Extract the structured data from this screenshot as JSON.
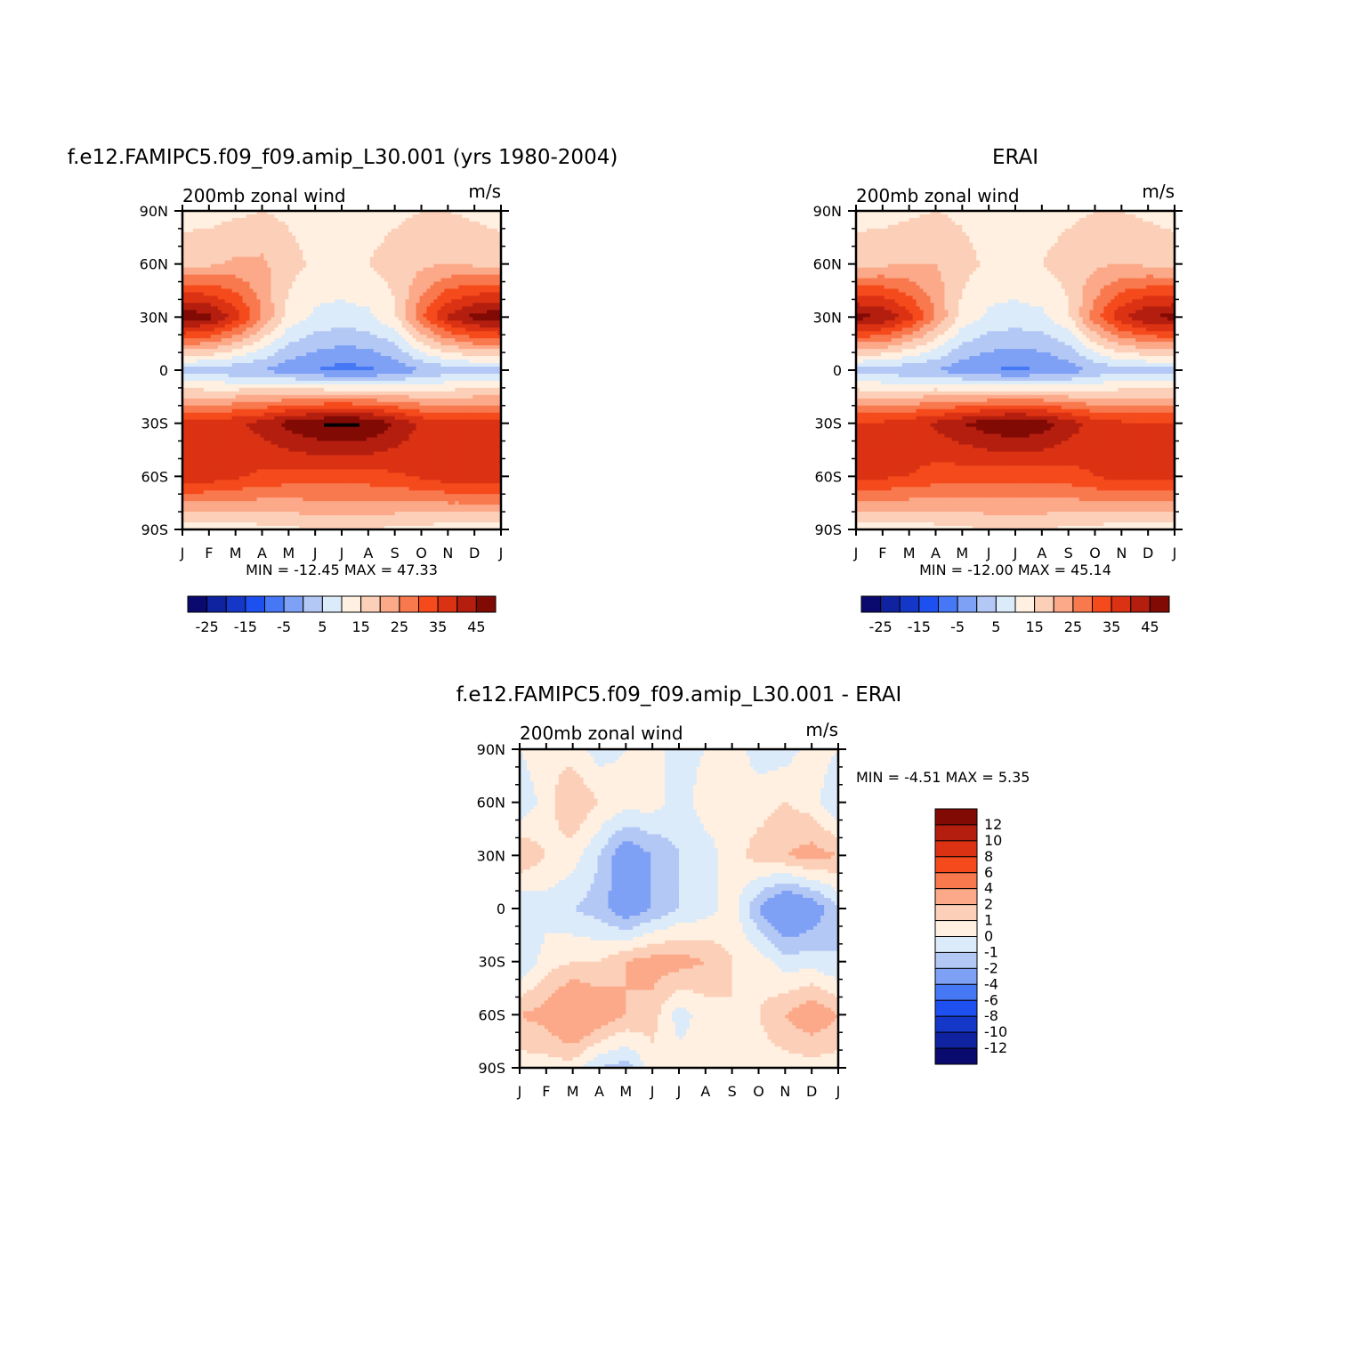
{
  "panels": [
    {
      "title": "f.e12.FAMIPC5.f09_f09.amip_L30.001 (yrs 1980-2004)",
      "subtitle": "200mb zonal wind",
      "units": "m/s",
      "stats": "MIN = -12.45 MAX = 47.33"
    },
    {
      "title": "ERAI",
      "subtitle": "200mb zonal wind",
      "units": "m/s",
      "stats": "MIN = -12.00 MAX = 45.14"
    },
    {
      "title": "f.e12.FAMIPC5.f09_f09.amip_L30.001 - ERAI",
      "subtitle": "200mb zonal wind",
      "units": "m/s",
      "stats": "MIN = -4.51 MAX = 5.35"
    }
  ],
  "axes": {
    "x_ticks": [
      "J",
      "F",
      "M",
      "A",
      "M",
      "J",
      "J",
      "A",
      "S",
      "O",
      "N",
      "D",
      "J"
    ],
    "y_ticks": [
      "90N",
      "60N",
      "30N",
      "0",
      "30S",
      "60S",
      "90S"
    ]
  },
  "colorbars": {
    "full": {
      "colors": [
        "#0a0a6e",
        "#0f23a0",
        "#1437c8",
        "#1e50f0",
        "#4678f5",
        "#7ea0f5",
        "#b4c8f5",
        "#dcebfa",
        "#fff0e1",
        "#fcd0b8",
        "#fca98a",
        "#f9794e",
        "#f54a1c",
        "#dc3214",
        "#b41e0f",
        "#820a05"
      ],
      "tick_labels": [
        "-25",
        "-15",
        "-5",
        "5",
        "15",
        "25",
        "35",
        "45"
      ]
    },
    "diff": {
      "colors": [
        "#820a05",
        "#b41e0f",
        "#dc3214",
        "#f54a1c",
        "#f9794e",
        "#fca98a",
        "#fcd0b8",
        "#fff0e1",
        "#dcebfa",
        "#b4c8f5",
        "#7ea0f5",
        "#4678f5",
        "#1e50f0",
        "#1437c8",
        "#0f23a0",
        "#0a0a6e"
      ],
      "labels": [
        "12",
        "10",
        "8",
        "6",
        "4",
        "2",
        "1",
        "0",
        "-1",
        "-2",
        "-4",
        "-6",
        "-8",
        "-10",
        "-12"
      ]
    }
  },
  "chart_data": [
    {
      "type": "heatmap",
      "title": "f.e12.FAMIPC5.f09_f09.amip_L30.001 (yrs 1980-2004)",
      "variable": "200mb zonal wind",
      "units": "m/s",
      "x": [
        "J",
        "F",
        "M",
        "A",
        "M",
        "J",
        "J",
        "A",
        "S",
        "O",
        "N",
        "D",
        "J"
      ],
      "y": [
        "90N",
        "60N",
        "30N",
        "0",
        "30S",
        "60S",
        "90S"
      ],
      "values": [
        [
          8,
          8,
          9,
          10,
          9,
          7,
          7,
          8,
          9,
          10,
          10,
          9,
          8
        ],
        [
          13,
          14,
          16,
          16,
          12,
          9,
          9,
          10,
          12,
          14,
          15,
          14,
          13
        ],
        [
          44,
          42,
          33,
          20,
          8,
          4,
          3,
          4,
          9,
          24,
          36,
          42,
          44
        ],
        [
          -2,
          -3,
          -4,
          -5,
          -8,
          -10,
          -12,
          -11,
          -9,
          -5,
          -3,
          -2,
          -2
        ],
        [
          32,
          32,
          34,
          37,
          42,
          45,
          47,
          45,
          40,
          34,
          32,
          32,
          32
        ],
        [
          34,
          33,
          31,
          29,
          28,
          28,
          28,
          28,
          29,
          31,
          33,
          34,
          34
        ],
        [
          6,
          6,
          7,
          8,
          9,
          10,
          10,
          10,
          9,
          8,
          7,
          6,
          6
        ]
      ],
      "min": -12.45,
      "max": 47.33
    },
    {
      "type": "heatmap",
      "title": "ERAI",
      "variable": "200mb zonal wind",
      "units": "m/s",
      "x": [
        "J",
        "F",
        "M",
        "A",
        "M",
        "J",
        "J",
        "A",
        "S",
        "O",
        "N",
        "D",
        "J"
      ],
      "y": [
        "90N",
        "60N",
        "30N",
        "0",
        "30S",
        "60S",
        "90S"
      ],
      "values": [
        [
          8,
          8,
          9,
          10,
          9,
          7,
          7,
          8,
          9,
          10,
          10,
          9,
          8
        ],
        [
          13,
          14,
          15,
          15,
          12,
          9,
          9,
          10,
          12,
          14,
          15,
          14,
          13
        ],
        [
          42,
          40,
          32,
          20,
          8,
          4,
          3,
          4,
          9,
          23,
          34,
          40,
          42
        ],
        [
          -2,
          -3,
          -4,
          -5,
          -8,
          -10,
          -11,
          -10,
          -8,
          -4,
          -2,
          -2,
          -2
        ],
        [
          31,
          31,
          33,
          36,
          40,
          43,
          45,
          43,
          38,
          33,
          31,
          31,
          31
        ],
        [
          32,
          31,
          30,
          28,
          27,
          27,
          27,
          27,
          28,
          30,
          32,
          32,
          32
        ],
        [
          6,
          6,
          7,
          8,
          9,
          10,
          10,
          10,
          9,
          8,
          7,
          6,
          6
        ]
      ],
      "min": -12.0,
      "max": 45.14
    },
    {
      "type": "heatmap",
      "title": "f.e12.FAMIPC5.f09_f09.amip_L30.001 - ERAI",
      "variable": "200mb zonal wind",
      "units": "m/s",
      "x": [
        "J",
        "F",
        "M",
        "A",
        "M",
        "J",
        "J",
        "A",
        "S",
        "O",
        "N",
        "D",
        "J"
      ],
      "y": [
        "90N",
        "60N",
        "30N",
        "0",
        "30S",
        "60S",
        "90S"
      ],
      "values": [
        [
          0,
          1,
          0.5,
          -0.5,
          0,
          0.5,
          -0.5,
          0,
          0.5,
          -0.5,
          -0.5,
          0.5,
          0
        ],
        [
          -1,
          0.5,
          2,
          1,
          0.5,
          0.5,
          -0.5,
          0.5,
          0.5,
          0.5,
          1,
          0.5,
          -1
        ],
        [
          2,
          1,
          0.5,
          -1,
          -3,
          -2,
          -1,
          -0.5,
          0.5,
          1.5,
          2,
          2.5,
          2
        ],
        [
          -1,
          -0.5,
          -1,
          -1.5,
          -3,
          -2,
          -1,
          -0.5,
          0.5,
          -2,
          -4,
          -3,
          -1
        ],
        [
          -1,
          0.5,
          1,
          1,
          2,
          2.5,
          2.5,
          2,
          1,
          0.5,
          -0.5,
          -0.5,
          -1
        ],
        [
          2,
          2.5,
          4,
          3,
          2,
          1.5,
          -0.5,
          0.5,
          1,
          1,
          2,
          3,
          2
        ],
        [
          0.5,
          0.5,
          0.5,
          -1,
          -1.5,
          0.5,
          0.5,
          0.5,
          0.5,
          0.5,
          0.5,
          0.5,
          0.5
        ]
      ],
      "min": -4.51,
      "max": 5.35
    }
  ]
}
